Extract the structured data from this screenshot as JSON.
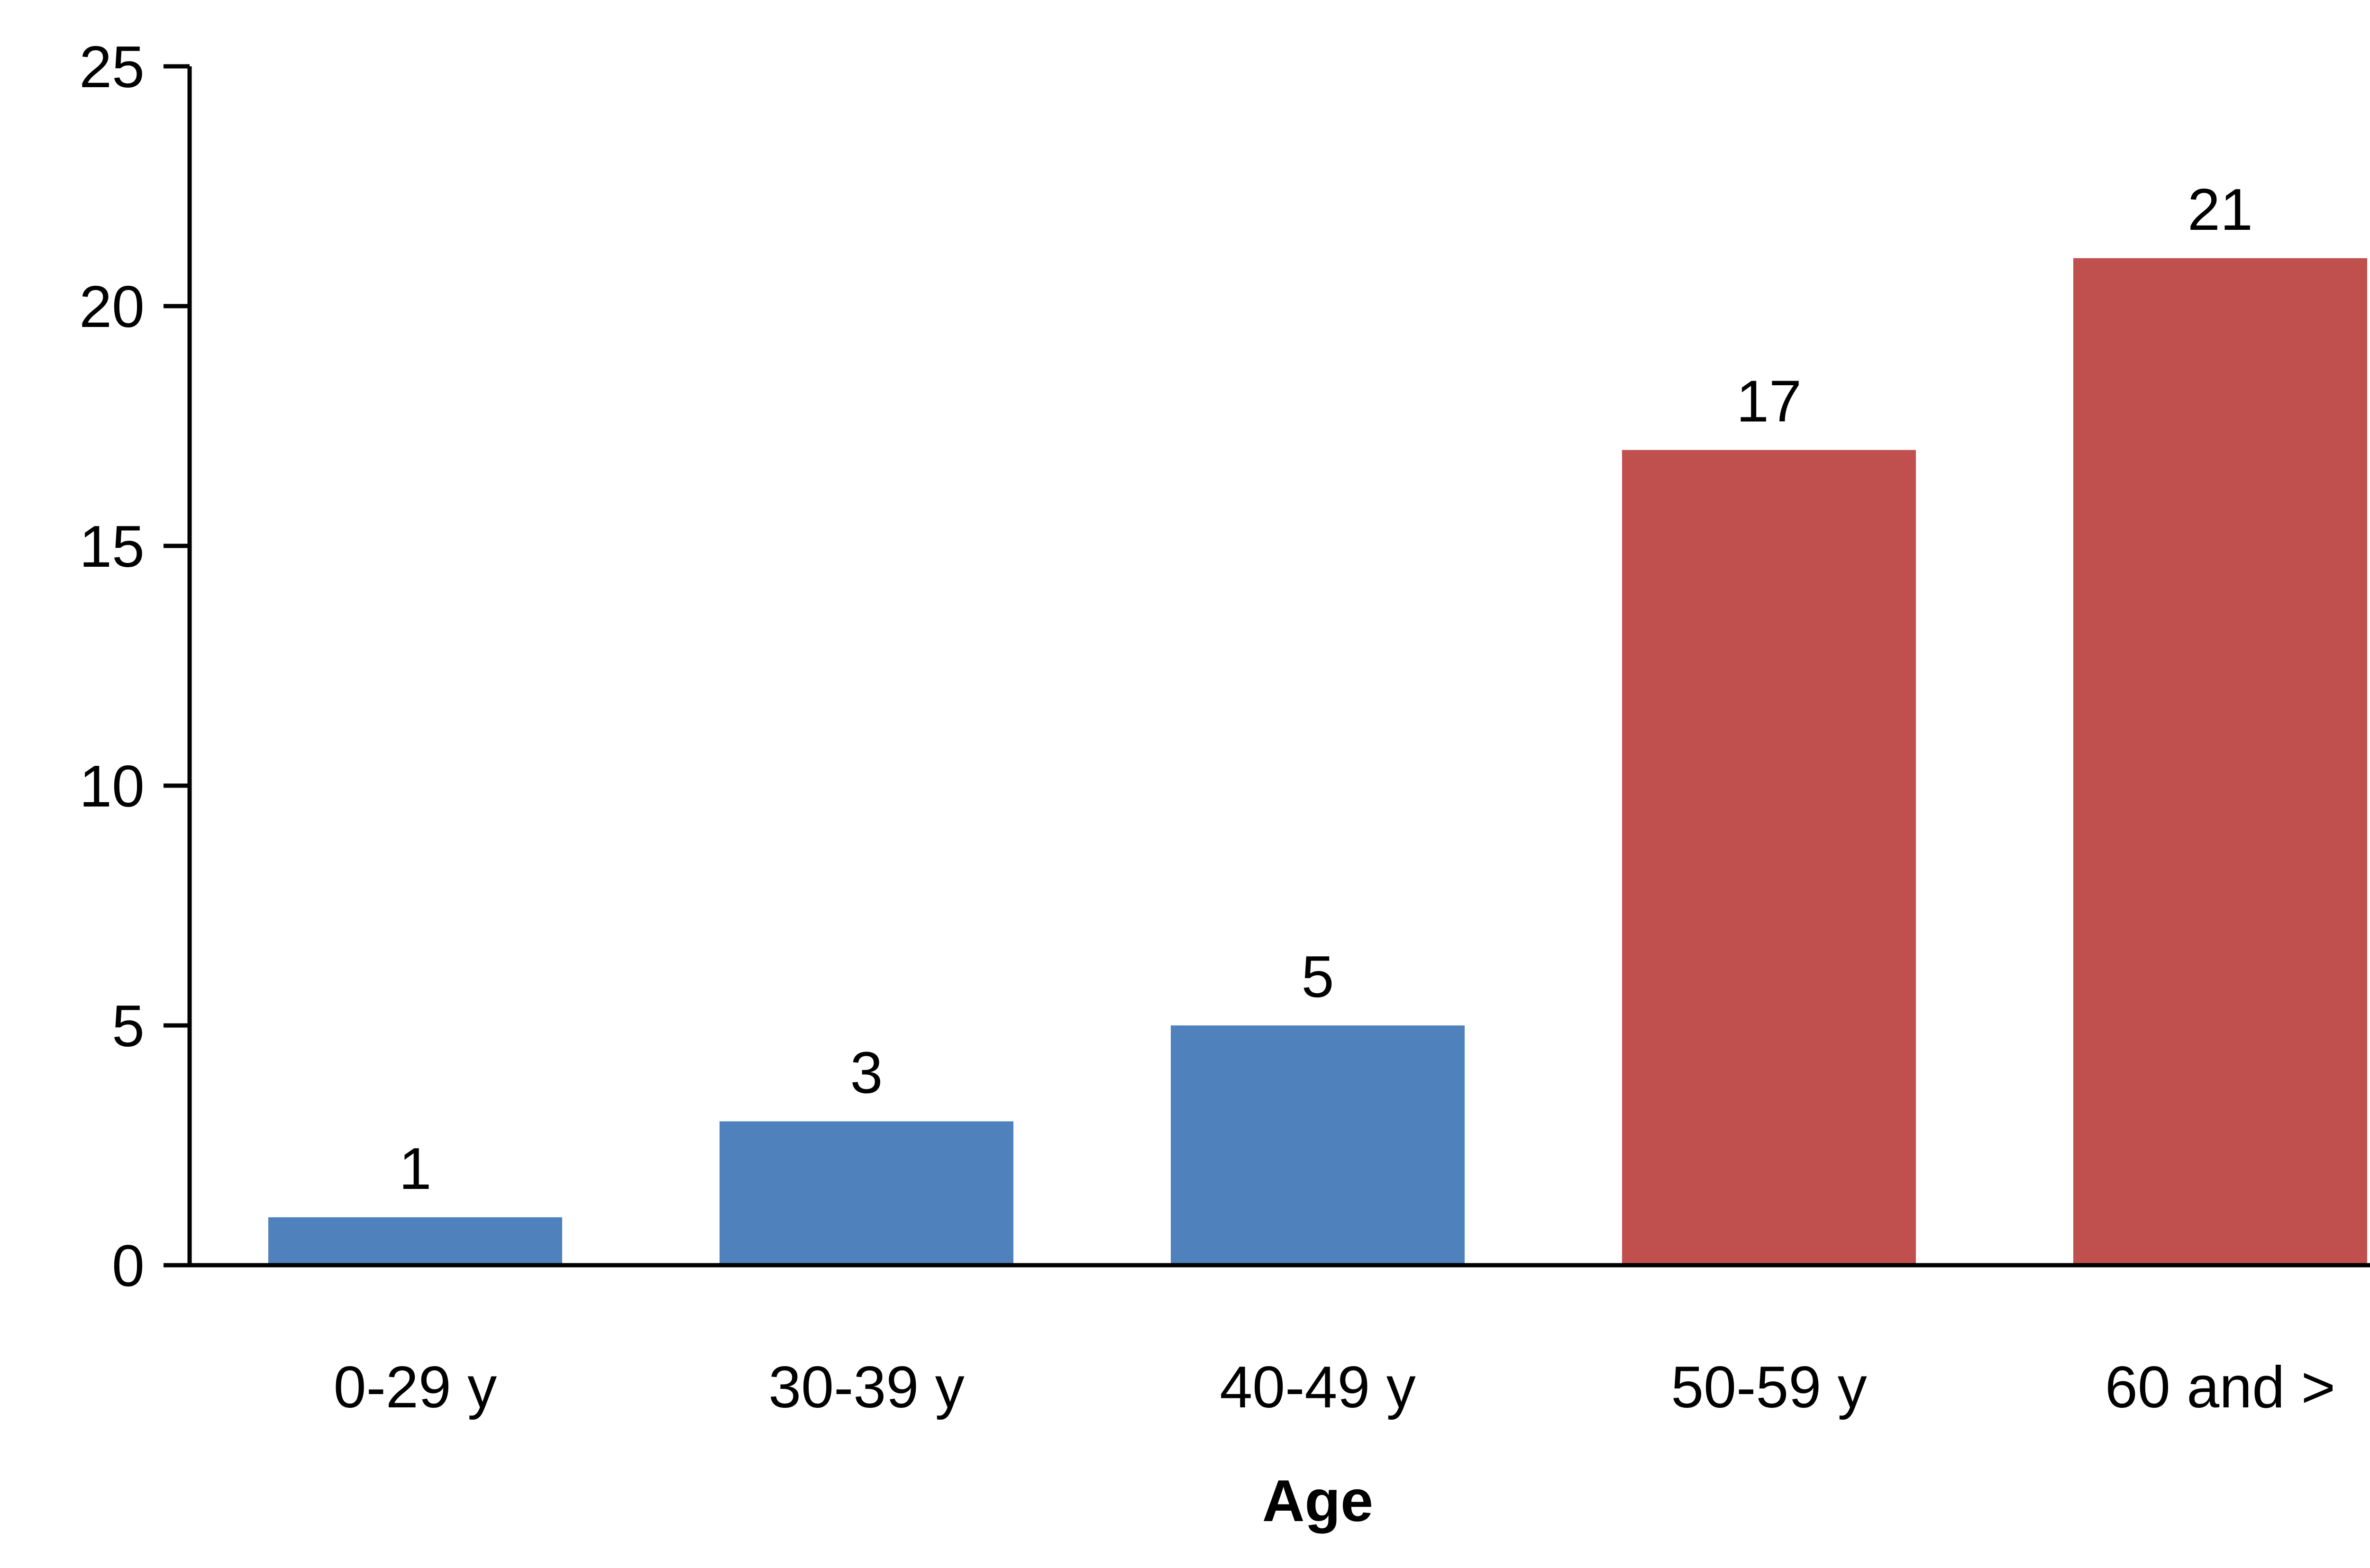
{
  "chart_data": {
    "type": "bar",
    "categories": [
      "0-29 y",
      "30-39 y",
      "40-49 y",
      "50-59 y",
      "60 and >"
    ],
    "values": [
      1,
      3,
      5,
      17,
      21
    ],
    "bar_colors": [
      "#4f81bd",
      "#4f81bd",
      "#4f81bd",
      "#c0504d",
      "#c0504d"
    ],
    "data_labels": [
      "1",
      "3",
      "5",
      "17",
      "21"
    ],
    "title": "",
    "xlabel": "Age",
    "ylabel": "",
    "ylim": [
      0,
      25
    ],
    "yticks": [
      "0",
      "5",
      "10",
      "15",
      "20",
      "25"
    ],
    "grid": false,
    "legend": "none"
  }
}
